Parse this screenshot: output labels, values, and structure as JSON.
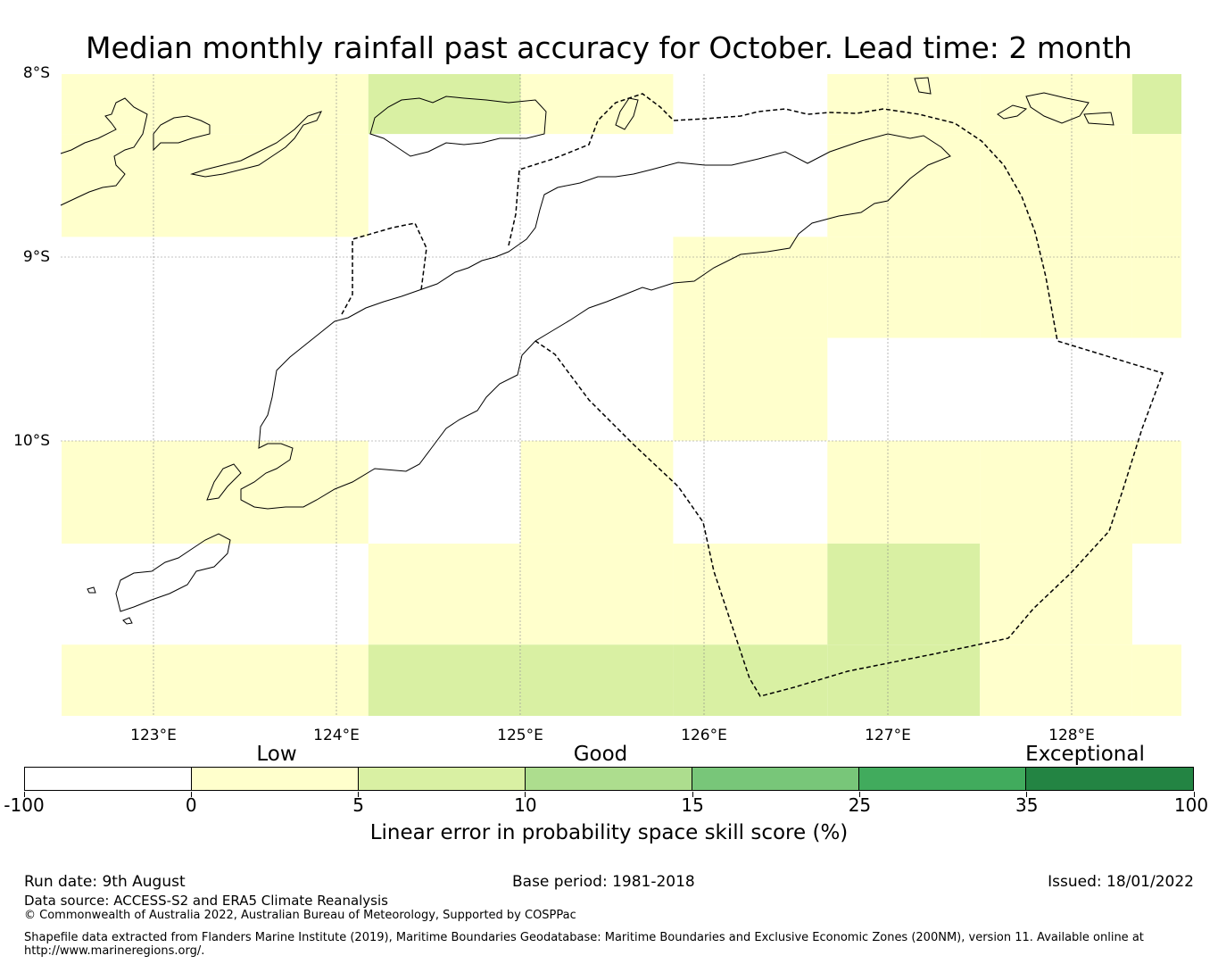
{
  "title": "Median monthly rainfall past accuracy for October. Lead time: 2 month",
  "map": {
    "lat_labels": [
      "8°S",
      "9°S",
      "10°S"
    ],
    "lon_labels": [
      "123°E",
      "124°E",
      "125°E",
      "126°E",
      "127°E",
      "128°E"
    ],
    "skill_grid": {
      "lon_edges": [
        122.5,
        124.17,
        125.0,
        125.83,
        126.67,
        127.5,
        128.33,
        128.6
      ],
      "lat_edges": [
        -7.97,
        -8.33,
        -8.89,
        -9.44,
        -10.0,
        -10.56,
        -11.11,
        -11.5
      ],
      "values": [
        [
          2,
          7,
          2,
          null,
          2,
          2,
          7
        ],
        [
          2,
          null,
          null,
          null,
          2,
          2,
          2
        ],
        [
          null,
          null,
          null,
          2,
          2,
          2,
          2
        ],
        [
          null,
          null,
          null,
          2,
          null,
          null,
          null
        ],
        [
          2,
          null,
          2,
          null,
          2,
          2,
          2
        ],
        [
          null,
          2,
          2,
          2,
          7,
          2,
          null
        ],
        [
          2,
          7,
          7,
          7,
          7,
          2,
          2
        ]
      ]
    }
  },
  "colorbar": {
    "category_labels": [
      "Low",
      "Good",
      "Exceptional"
    ],
    "ticks": [
      "-100",
      "0",
      "5",
      "10",
      "15",
      "25",
      "35",
      "100"
    ],
    "colors": [
      "#ffffff",
      "#ffffcc",
      "#d9f0a3",
      "#addd8e",
      "#78c679",
      "#41ab5d",
      "#238443"
    ],
    "title": "Linear error in probability space skill score (%)"
  },
  "footer": {
    "run_date": "Run date: 9th August",
    "base_period": "Base period: 1981-2018",
    "issued": "Issued: 18/01/2022",
    "data_source": "Data source: ACCESS-S2 and ERA5 Climate Reanalysis",
    "copyright": "© Commonwealth of Australia 2022, Australian Bureau of Meteorology, Supported by COSPPac",
    "shapefile_line1": "Shapefile data extracted from Flanders Marine Institute (2019), Maritime Boundaries Geodatabase: Maritime Boundaries and Exclusive Economic Zones (200NM), version 11. Available online at",
    "shapefile_line2": "http://www.marineregions.org/."
  }
}
